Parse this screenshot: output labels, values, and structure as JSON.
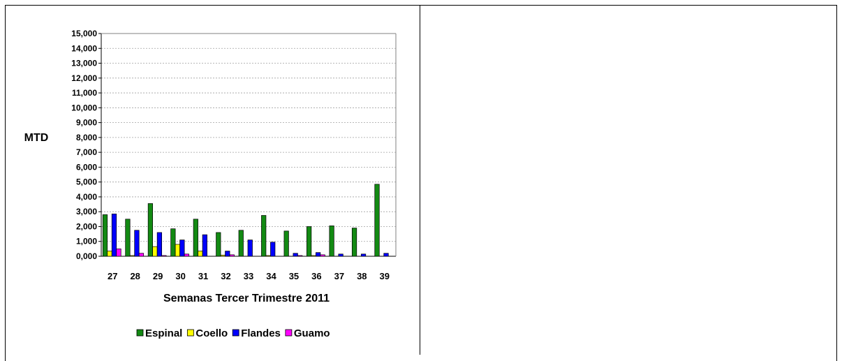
{
  "chart_data": {
    "type": "bar",
    "ylabel": "MTD",
    "xlabel": "Semanas Tercer Trimestre 2011",
    "categories": [
      "27",
      "28",
      "29",
      "30",
      "31",
      "32",
      "33",
      "34",
      "35",
      "36",
      "37",
      "38",
      "39"
    ],
    "ylim": [
      0,
      15000
    ],
    "yticks": [
      "0,000",
      "1,000",
      "2,000",
      "3,000",
      "4,000",
      "5,000",
      "6,000",
      "7,000",
      "8,000",
      "9,000",
      "10,000",
      "11,000",
      "12,000",
      "13,000",
      "14,000",
      "15,000"
    ],
    "grid": true,
    "legend_position": "bottom",
    "series": [
      {
        "name": "Espinal",
        "color": "#138a13",
        "values": [
          2800,
          2500,
          3550,
          1850,
          2500,
          1600,
          1750,
          2750,
          1700,
          2000,
          2050,
          1900,
          4850
        ]
      },
      {
        "name": "Coello",
        "color": "#ffff00",
        "values": [
          350,
          50,
          650,
          800,
          350,
          80,
          0,
          50,
          0,
          50,
          0,
          0,
          0
        ]
      },
      {
        "name": "Flandes",
        "color": "#0000ff",
        "values": [
          2850,
          1750,
          1600,
          1100,
          1450,
          350,
          1100,
          950,
          200,
          250,
          150,
          150,
          200
        ]
      },
      {
        "name": "Guamo",
        "color": "#ff00ff",
        "values": [
          500,
          200,
          50,
          150,
          0,
          100,
          0,
          0,
          50,
          100,
          0,
          0,
          0
        ]
      }
    ]
  }
}
